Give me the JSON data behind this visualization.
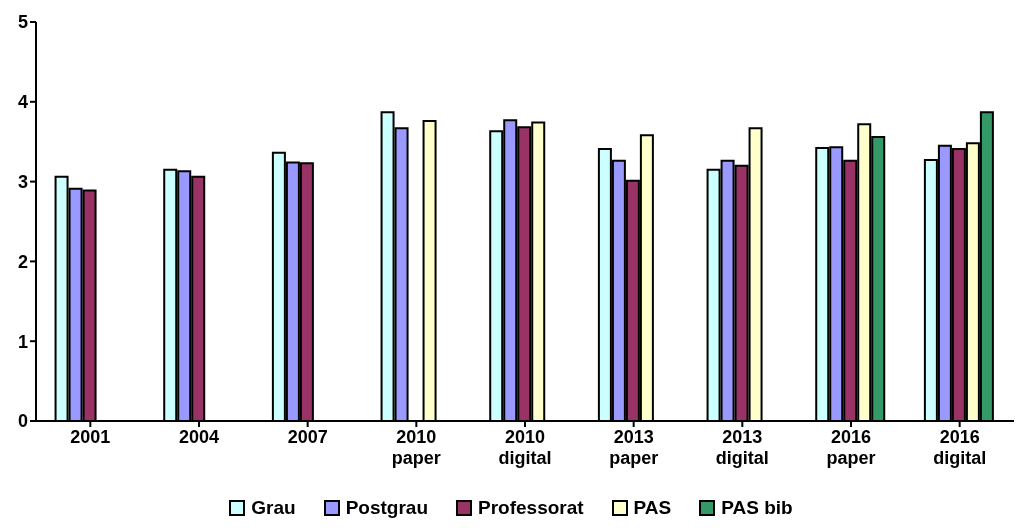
{
  "chart_data": {
    "type": "bar",
    "categories": [
      "2001",
      "2004",
      "2007",
      "2010\npaper",
      "2010\ndigital",
      "2013\npaper",
      "2013\ndigital",
      "2016\npaper",
      "2016\ndigital"
    ],
    "series": [
      {
        "name": "Grau",
        "color": "#ccffff",
        "values": [
          3.06,
          3.15,
          3.36,
          3.87,
          3.63,
          3.41,
          3.15,
          3.42,
          3.27
        ]
      },
      {
        "name": "Postgrau",
        "color": "#9999ff",
        "values": [
          2.91,
          3.13,
          3.24,
          3.67,
          3.77,
          3.26,
          3.26,
          3.43,
          3.45
        ]
      },
      {
        "name": "Professorat",
        "color": "#993366",
        "values": [
          2.89,
          3.06,
          3.23,
          null,
          3.68,
          3.01,
          3.2,
          3.26,
          3.41
        ]
      },
      {
        "name": "PAS",
        "color": "#ffffcc",
        "values": [
          null,
          null,
          null,
          3.76,
          3.74,
          3.58,
          3.67,
          3.72,
          3.48
        ]
      },
      {
        "name": "PAS bib",
        "color": "#339966",
        "values": [
          null,
          null,
          null,
          null,
          null,
          null,
          null,
          3.56,
          3.87
        ]
      }
    ],
    "ylim": [
      0,
      5
    ],
    "yticks": [
      0,
      1,
      2,
      3,
      4,
      5
    ],
    "legend": "bottom"
  }
}
